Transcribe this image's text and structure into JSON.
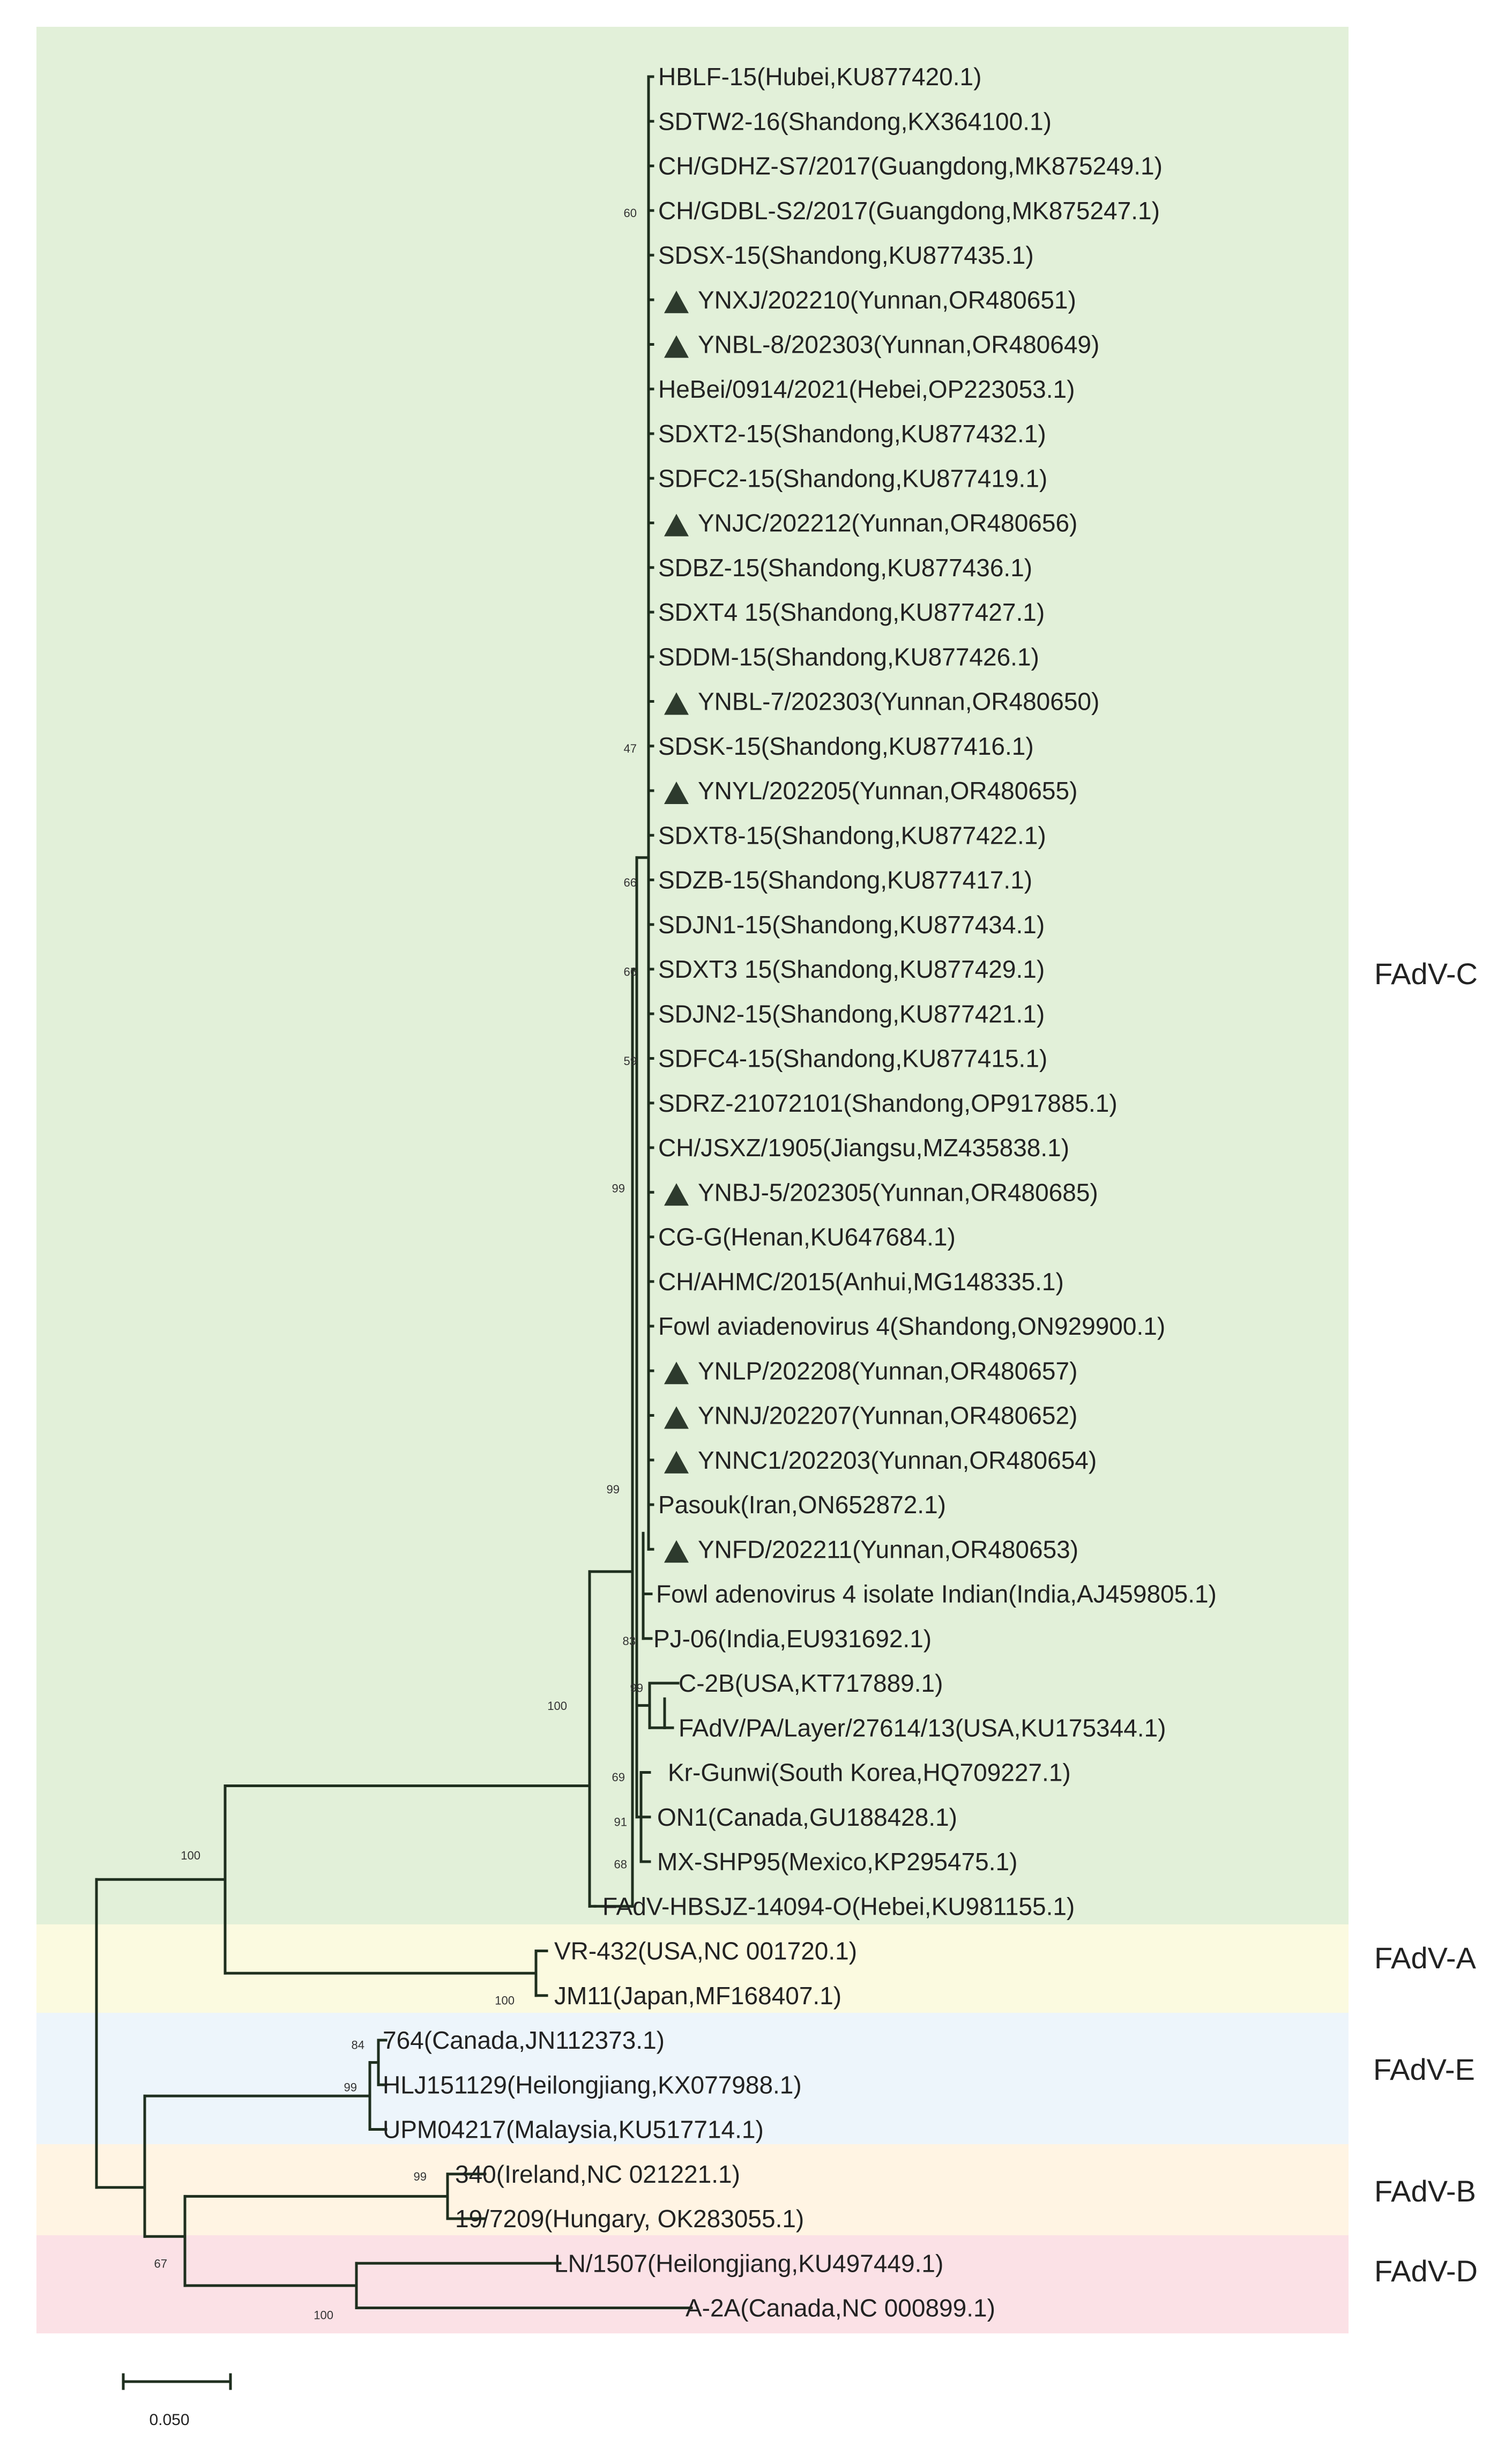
{
  "colors": {
    "band_C": "#e2f0d9",
    "band_A": "#fbfae0",
    "band_E": "#edf5fb",
    "band_B": "#fff4e3",
    "band_D": "#fbe1e6",
    "branch": "#1f2f1f",
    "marker": "#2d3a2d"
  },
  "clades": [
    {
      "label": "FAdV-C"
    },
    {
      "label": "FAdV-A"
    },
    {
      "label": "FAdV-E"
    },
    {
      "label": "FAdV-B"
    },
    {
      "label": "FAdV-D"
    }
  ],
  "leaves": [
    {
      "label": "HBLF-15(Hubei,KU877420.1)",
      "marked": false
    },
    {
      "label": "SDTW2-16(Shandong,KX364100.1)",
      "marked": false
    },
    {
      "label": "CH/GDHZ-S7/2017(Guangdong,MK875249.1)",
      "marked": false
    },
    {
      "label": "CH/GDBL-S2/2017(Guangdong,MK875247.1)",
      "marked": false
    },
    {
      "label": "SDSX-15(Shandong,KU877435.1)",
      "marked": false
    },
    {
      "label": "YNXJ/202210(Yunnan,OR480651)",
      "marked": true
    },
    {
      "label": "YNBL-8/202303(Yunnan,OR480649)",
      "marked": true
    },
    {
      "label": "HeBei/0914/2021(Hebei,OP223053.1)",
      "marked": false
    },
    {
      "label": "SDXT2-15(Shandong,KU877432.1)",
      "marked": false
    },
    {
      "label": "SDFC2-15(Shandong,KU877419.1)",
      "marked": false
    },
    {
      "label": "YNJC/202212(Yunnan,OR480656)",
      "marked": true
    },
    {
      "label": "SDBZ-15(Shandong,KU877436.1)",
      "marked": false
    },
    {
      "label": "SDXT4 15(Shandong,KU877427.1)",
      "marked": false
    },
    {
      "label": "SDDM-15(Shandong,KU877426.1)",
      "marked": false
    },
    {
      "label": "YNBL-7/202303(Yunnan,OR480650)",
      "marked": true
    },
    {
      "label": "SDSK-15(Shandong,KU877416.1)",
      "marked": false
    },
    {
      "label": "YNYL/202205(Yunnan,OR480655)",
      "marked": true
    },
    {
      "label": "SDXT8-15(Shandong,KU877422.1)",
      "marked": false
    },
    {
      "label": "SDZB-15(Shandong,KU877417.1)",
      "marked": false
    },
    {
      "label": "SDJN1-15(Shandong,KU877434.1)",
      "marked": false
    },
    {
      "label": "SDXT3 15(Shandong,KU877429.1)",
      "marked": false
    },
    {
      "label": "SDJN2-15(Shandong,KU877421.1)",
      "marked": false
    },
    {
      "label": "SDFC4-15(Shandong,KU877415.1)",
      "marked": false
    },
    {
      "label": "SDRZ-21072101(Shandong,OP917885.1)",
      "marked": false
    },
    {
      "label": "CH/JSXZ/1905(Jiangsu,MZ435838.1)",
      "marked": false
    },
    {
      "label": "YNBJ-5/202305(Yunnan,OR480685)",
      "marked": true
    },
    {
      "label": "CG-G(Henan,KU647684.1)",
      "marked": false
    },
    {
      "label": "CH/AHMC/2015(Anhui,MG148335.1)",
      "marked": false
    },
    {
      "label": "Fowl aviadenovirus 4(Shandong,ON929900.1)",
      "marked": false
    },
    {
      "label": "YNLP/202208(Yunnan,OR480657)",
      "marked": true
    },
    {
      "label": "YNNJ/202207(Yunnan,OR480652)",
      "marked": true
    },
    {
      "label": "YNNC1/202203(Yunnan,OR480654)",
      "marked": true
    },
    {
      "label": "Pasouk(Iran,ON652872.1)",
      "marked": false
    },
    {
      "label": "YNFD/202211(Yunnan,OR480653)",
      "marked": true
    },
    {
      "label": "Fowl adenovirus 4 isolate Indian(India,AJ459805.1)",
      "marked": false
    },
    {
      "label": "PJ-06(India,EU931692.1)",
      "marked": false
    },
    {
      "label": "C-2B(USA,KT717889.1)",
      "marked": false
    },
    {
      "label": "FAdV/PA/Layer/27614/13(USA,KU175344.1)",
      "marked": false
    },
    {
      "label": "Kr-Gunwi(South Korea,HQ709227.1)",
      "marked": false
    },
    {
      "label": "ON1(Canada,GU188428.1)",
      "marked": false
    },
    {
      "label": "MX-SHP95(Mexico,KP295475.1)",
      "marked": false
    },
    {
      "label": "FAdV-HBSJZ-14094-O(Hebei,KU981155.1)",
      "marked": false
    },
    {
      "label": "VR-432(USA,NC 001720.1)",
      "marked": false
    },
    {
      "label": "JM11(Japan,MF168407.1)",
      "marked": false
    },
    {
      "label": "764(Canada,JN112373.1)",
      "marked": false
    },
    {
      "label": "HLJ151129(Heilongjiang,KX077988.1)",
      "marked": false
    },
    {
      "label": "UPM04217(Malaysia,KU517714.1)",
      "marked": false
    },
    {
      "label": "340(Ireland,NC 021221.1)",
      "marked": false
    },
    {
      "label": "19/7209(Hungary, OK283055.1)",
      "marked": false
    },
    {
      "label": "LN/1507(Heilongjiang,KU497449.1)",
      "marked": false
    },
    {
      "label": "A-2A(Canada,NC 000899.1)",
      "marked": false
    }
  ],
  "bootstrap": [
    {
      "value": "60"
    },
    {
      "value": "47"
    },
    {
      "value": "66"
    },
    {
      "value": "66"
    },
    {
      "value": "59"
    },
    {
      "value": "99"
    },
    {
      "value": "99"
    },
    {
      "value": "100"
    },
    {
      "value": "83"
    },
    {
      "value": "99"
    },
    {
      "value": "69"
    },
    {
      "value": "91"
    },
    {
      "value": "68"
    },
    {
      "value": "100"
    },
    {
      "value": "100"
    },
    {
      "value": "84"
    },
    {
      "value": "99"
    },
    {
      "value": "99"
    },
    {
      "value": "67"
    },
    {
      "value": "100"
    }
  ],
  "scale_bar": {
    "label": "0.050",
    "value": 0.05
  }
}
